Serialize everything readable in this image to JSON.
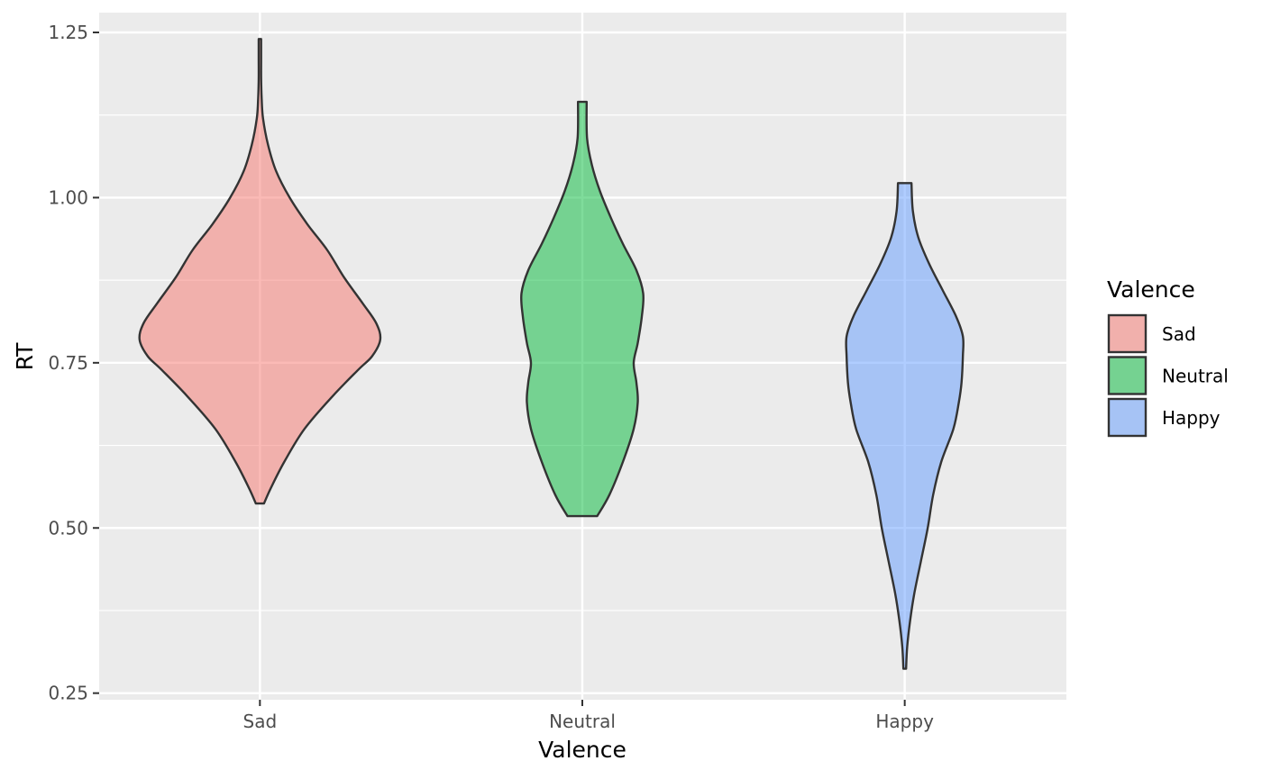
{
  "chart_data": {
    "type": "violin",
    "xlabel": "Valence",
    "ylabel": "RT",
    "categories": [
      "Sad",
      "Neutral",
      "Happy"
    ],
    "ylim": [
      0.24,
      1.28
    ],
    "y_ticks": [
      {
        "value": 0.25,
        "label": "0.25"
      },
      {
        "value": 0.5,
        "label": "0.50"
      },
      {
        "value": 0.75,
        "label": "0.75"
      },
      {
        "value": 1.0,
        "label": "1.00"
      },
      {
        "value": 1.25,
        "label": "1.25"
      }
    ],
    "y_minor_ticks": [
      0.375,
      0.625,
      0.875,
      1.125
    ],
    "grid": true,
    "legend": {
      "title": "Valence",
      "position": "right",
      "entries": [
        "Sad",
        "Neutral",
        "Happy"
      ]
    },
    "series": [
      {
        "category": "Sad",
        "color": "#F8766D",
        "min": 0.537,
        "max": 1.24,
        "density_profile": [
          [
            0.537,
            0.03
          ],
          [
            0.56,
            0.08
          ],
          [
            0.6,
            0.18
          ],
          [
            0.65,
            0.33
          ],
          [
            0.7,
            0.54
          ],
          [
            0.74,
            0.73
          ],
          [
            0.76,
            0.83
          ],
          [
            0.785,
            0.89
          ],
          [
            0.81,
            0.86
          ],
          [
            0.84,
            0.76
          ],
          [
            0.88,
            0.62
          ],
          [
            0.92,
            0.5
          ],
          [
            0.96,
            0.35
          ],
          [
            1.0,
            0.22
          ],
          [
            1.04,
            0.12
          ],
          [
            1.08,
            0.06
          ],
          [
            1.12,
            0.023
          ],
          [
            1.15,
            0.013
          ],
          [
            1.18,
            0.009
          ],
          [
            1.21,
            0.009
          ],
          [
            1.24,
            0.009
          ]
        ]
      },
      {
        "category": "Neutral",
        "color": "#00BA38",
        "min": 0.518,
        "max": 1.145,
        "density_profile": [
          [
            0.518,
            0.11
          ],
          [
            0.55,
            0.2
          ],
          [
            0.6,
            0.3
          ],
          [
            0.65,
            0.38
          ],
          [
            0.69,
            0.41
          ],
          [
            0.72,
            0.4
          ],
          [
            0.75,
            0.38
          ],
          [
            0.78,
            0.41
          ],
          [
            0.82,
            0.44
          ],
          [
            0.855,
            0.45
          ],
          [
            0.89,
            0.4
          ],
          [
            0.93,
            0.3
          ],
          [
            0.97,
            0.21
          ],
          [
            1.01,
            0.13
          ],
          [
            1.05,
            0.07
          ],
          [
            1.09,
            0.035
          ],
          [
            1.145,
            0.032
          ]
        ]
      },
      {
        "category": "Happy",
        "color": "#619CFF",
        "min": 0.287,
        "max": 1.022,
        "density_profile": [
          [
            0.287,
            0.01
          ],
          [
            0.32,
            0.018
          ],
          [
            0.36,
            0.04
          ],
          [
            0.4,
            0.07
          ],
          [
            0.45,
            0.12
          ],
          [
            0.5,
            0.17
          ],
          [
            0.55,
            0.21
          ],
          [
            0.6,
            0.27
          ],
          [
            0.65,
            0.36
          ],
          [
            0.69,
            0.4
          ],
          [
            0.72,
            0.42
          ],
          [
            0.76,
            0.43
          ],
          [
            0.79,
            0.43
          ],
          [
            0.82,
            0.38
          ],
          [
            0.86,
            0.28
          ],
          [
            0.9,
            0.18
          ],
          [
            0.94,
            0.1
          ],
          [
            0.98,
            0.06
          ],
          [
            1.022,
            0.05
          ]
        ]
      }
    ]
  }
}
